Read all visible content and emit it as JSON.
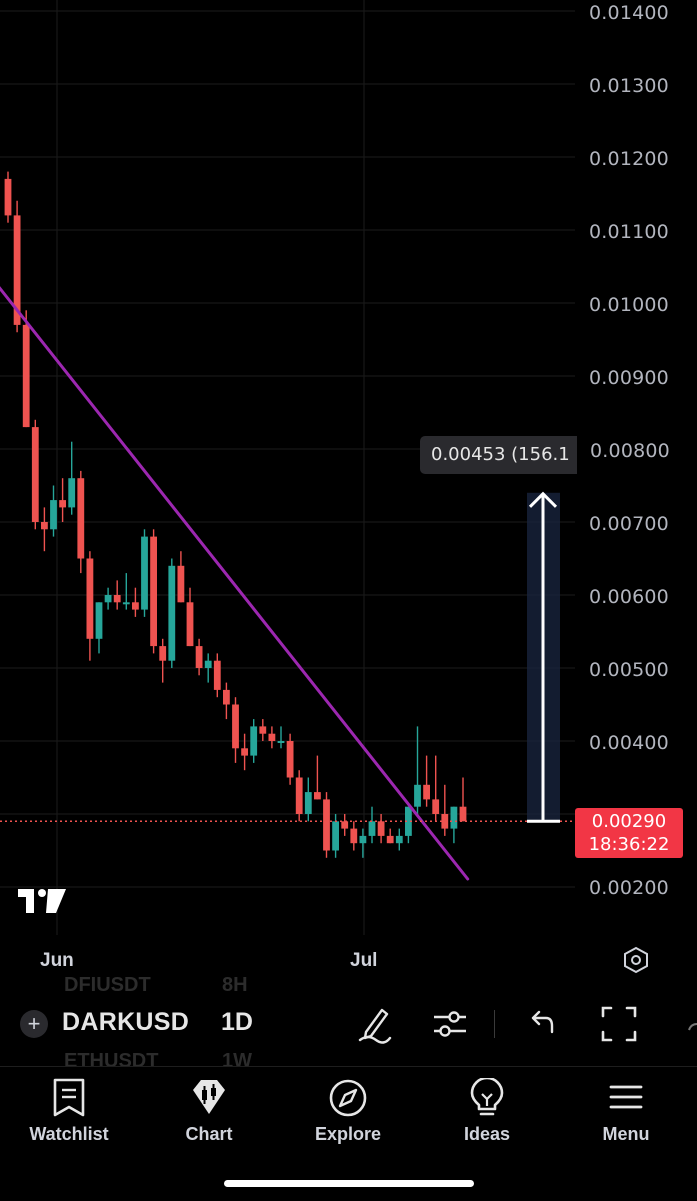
{
  "chart": {
    "price_axis": [
      "0.01400",
      "0.01300",
      "0.01200",
      "0.01100",
      "0.01000",
      "0.00900",
      "0.00800",
      "0.00700",
      "0.00600",
      "0.00500",
      "0.00400",
      "0.00200"
    ],
    "time_axis": [
      "Jun",
      "Jul"
    ],
    "last_price": "0.00290",
    "countdown": "18:36:22",
    "measure_label": "0.00453 (156.1",
    "colors": {
      "up": "#26a69a",
      "down": "#ef5350",
      "trendline": "#9c27b0",
      "last_price_tag": "#f23645"
    }
  },
  "chart_data": {
    "type": "candlestick",
    "symbol": "DARKUSD",
    "interval": "1D",
    "y_range": [
      0.0018,
      0.0145
    ],
    "candles": [
      [
        0.0117,
        0.0118,
        0.0111,
        0.0112
      ],
      [
        0.0112,
        0.0114,
        0.0096,
        0.0097
      ],
      [
        0.0097,
        0.0099,
        0.0083,
        0.0083
      ],
      [
        0.0083,
        0.0084,
        0.0069,
        0.007
      ],
      [
        0.007,
        0.0072,
        0.0066,
        0.0069
      ],
      [
        0.0069,
        0.0075,
        0.0068,
        0.0073
      ],
      [
        0.0073,
        0.0076,
        0.007,
        0.0072
      ],
      [
        0.0072,
        0.0081,
        0.0071,
        0.0076
      ],
      [
        0.0076,
        0.0077,
        0.0063,
        0.0065
      ],
      [
        0.0065,
        0.0066,
        0.0051,
        0.0054
      ],
      [
        0.0054,
        0.0059,
        0.0052,
        0.0059
      ],
      [
        0.0059,
        0.0061,
        0.0058,
        0.006
      ],
      [
        0.006,
        0.0062,
        0.0058,
        0.0059
      ],
      [
        0.0059,
        0.0063,
        0.0058,
        0.0059
      ],
      [
        0.0059,
        0.0061,
        0.0057,
        0.0058
      ],
      [
        0.0058,
        0.0069,
        0.0057,
        0.0068
      ],
      [
        0.0068,
        0.0069,
        0.0052,
        0.0053
      ],
      [
        0.0053,
        0.0054,
        0.0048,
        0.0051
      ],
      [
        0.0051,
        0.0065,
        0.005,
        0.0064
      ],
      [
        0.0064,
        0.0066,
        0.0059,
        0.0059
      ],
      [
        0.0059,
        0.0061,
        0.0053,
        0.0053
      ],
      [
        0.0053,
        0.0054,
        0.0049,
        0.005
      ],
      [
        0.005,
        0.0052,
        0.0048,
        0.0051
      ],
      [
        0.0051,
        0.0052,
        0.0046,
        0.0047
      ],
      [
        0.0047,
        0.0048,
        0.0043,
        0.0045
      ],
      [
        0.0045,
        0.0046,
        0.0037,
        0.0039
      ],
      [
        0.0039,
        0.0041,
        0.0036,
        0.0038
      ],
      [
        0.0038,
        0.0043,
        0.0037,
        0.0042
      ],
      [
        0.0042,
        0.0043,
        0.004,
        0.0041
      ],
      [
        0.0041,
        0.0042,
        0.0039,
        0.004
      ],
      [
        0.004,
        0.0042,
        0.0039,
        0.004
      ],
      [
        0.004,
        0.0041,
        0.0034,
        0.0035
      ],
      [
        0.0035,
        0.0036,
        0.0029,
        0.003
      ],
      [
        0.003,
        0.0035,
        0.0029,
        0.0033
      ],
      [
        0.0033,
        0.0038,
        0.0032,
        0.0032
      ],
      [
        0.0032,
        0.0033,
        0.0024,
        0.0025
      ],
      [
        0.0025,
        0.003,
        0.0024,
        0.0029
      ],
      [
        0.0029,
        0.003,
        0.0027,
        0.0028
      ],
      [
        0.0028,
        0.0029,
        0.0025,
        0.0026
      ],
      [
        0.0026,
        0.0028,
        0.0024,
        0.0027
      ],
      [
        0.0027,
        0.0031,
        0.0026,
        0.0029
      ],
      [
        0.0029,
        0.003,
        0.0026,
        0.0027
      ],
      [
        0.0027,
        0.0028,
        0.0026,
        0.0026
      ],
      [
        0.0026,
        0.0028,
        0.0025,
        0.0027
      ],
      [
        0.0027,
        0.0031,
        0.0026,
        0.0031
      ],
      [
        0.0031,
        0.0042,
        0.003,
        0.0034
      ],
      [
        0.0034,
        0.0038,
        0.0031,
        0.0032
      ],
      [
        0.0032,
        0.0038,
        0.0029,
        0.003
      ],
      [
        0.003,
        0.0034,
        0.0027,
        0.0028
      ],
      [
        0.0028,
        0.0031,
        0.0026,
        0.0031
      ],
      [
        0.0031,
        0.0035,
        0.0029,
        0.0029
      ]
    ],
    "trendline": [
      [
        0,
        0.0102
      ],
      [
        67,
        0.002
      ]
    ],
    "last_price": 0.0029,
    "measure": {
      "from": 0.0029,
      "to": 0.0074
    }
  },
  "toolbar": {
    "symbol": "DARKUSD",
    "interval": "1D",
    "ghost_top_symbol": "DFIUSDT",
    "ghost_top_interval": "8H",
    "ghost_bottom_symbol": "ETHUSDT",
    "ghost_bottom_interval": "1W"
  },
  "tabs": [
    {
      "label": "Watchlist",
      "icon": "watchlist-icon"
    },
    {
      "label": "Chart",
      "icon": "chart-icon"
    },
    {
      "label": "Explore",
      "icon": "compass-icon"
    },
    {
      "label": "Ideas",
      "icon": "lightbulb-icon"
    },
    {
      "label": "Menu",
      "icon": "menu-icon"
    }
  ]
}
